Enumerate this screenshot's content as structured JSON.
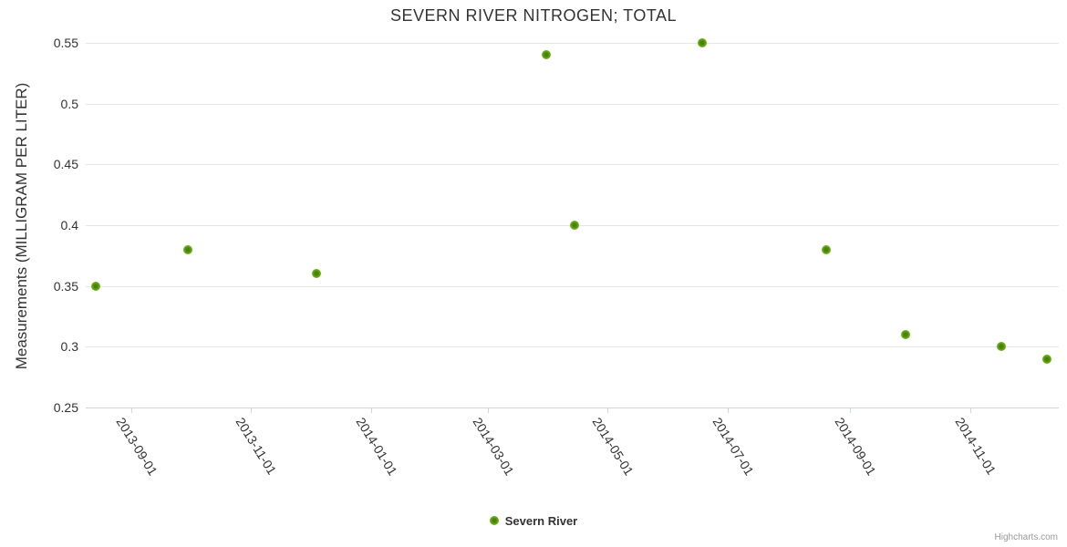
{
  "credits": "Highcharts.com",
  "colors": {
    "marker_outer": "#76b41f",
    "marker_inner": "#3f7d05",
    "gridline": "#e6e6e6",
    "axis_line": "#ccd6eb",
    "title_text": "#333333",
    "label_text": "#333333",
    "credits_text": "#999999",
    "background": "#ffffff"
  },
  "chart_data": {
    "type": "scatter",
    "title": "SEVERN RIVER NITROGEN; TOTAL",
    "xlabel": "",
    "ylabel": "Measurements (MILLIGRAM PER LITER)",
    "series": [
      {
        "name": "Severn River",
        "color": "#76b41f",
        "points": [
          {
            "date": "2013-08-14",
            "value": 0.35
          },
          {
            "date": "2013-09-30",
            "value": 0.38
          },
          {
            "date": "2013-12-04",
            "value": 0.36
          },
          {
            "date": "2014-03-31",
            "value": 0.54
          },
          {
            "date": "2014-04-14",
            "value": 0.4
          },
          {
            "date": "2014-06-18",
            "value": 0.55
          },
          {
            "date": "2014-08-20",
            "value": 0.38
          },
          {
            "date": "2014-09-29",
            "value": 0.31
          },
          {
            "date": "2014-11-17",
            "value": 0.3
          },
          {
            "date": "2014-12-10",
            "value": 0.29
          }
        ]
      }
    ],
    "x_ticks": [
      {
        "date": "2013-09-01",
        "label": "2013-09-01"
      },
      {
        "date": "2013-11-01",
        "label": "2013-11-01"
      },
      {
        "date": "2014-01-01",
        "label": "2014-01-01"
      },
      {
        "date": "2014-03-01",
        "label": "2014-03-01"
      },
      {
        "date": "2014-05-01",
        "label": "2014-05-01"
      },
      {
        "date": "2014-07-01",
        "label": "2014-07-01"
      },
      {
        "date": "2014-09-01",
        "label": "2014-09-01"
      },
      {
        "date": "2014-11-01",
        "label": "2014-11-01"
      }
    ],
    "y_ticks": [
      {
        "value": 0.25,
        "label": "0.25"
      },
      {
        "value": 0.3,
        "label": "0.3"
      },
      {
        "value": 0.35,
        "label": "0.35"
      },
      {
        "value": 0.4,
        "label": "0.4"
      },
      {
        "value": 0.45,
        "label": "0.45"
      },
      {
        "value": 0.5,
        "label": "0.5"
      },
      {
        "value": 0.55,
        "label": "0.55"
      }
    ],
    "xlim": [
      "2013-08-09",
      "2014-12-16"
    ],
    "ylim": [
      0.25,
      0.55
    ],
    "grid": "horizontal",
    "legend_position": "bottom-center"
  }
}
